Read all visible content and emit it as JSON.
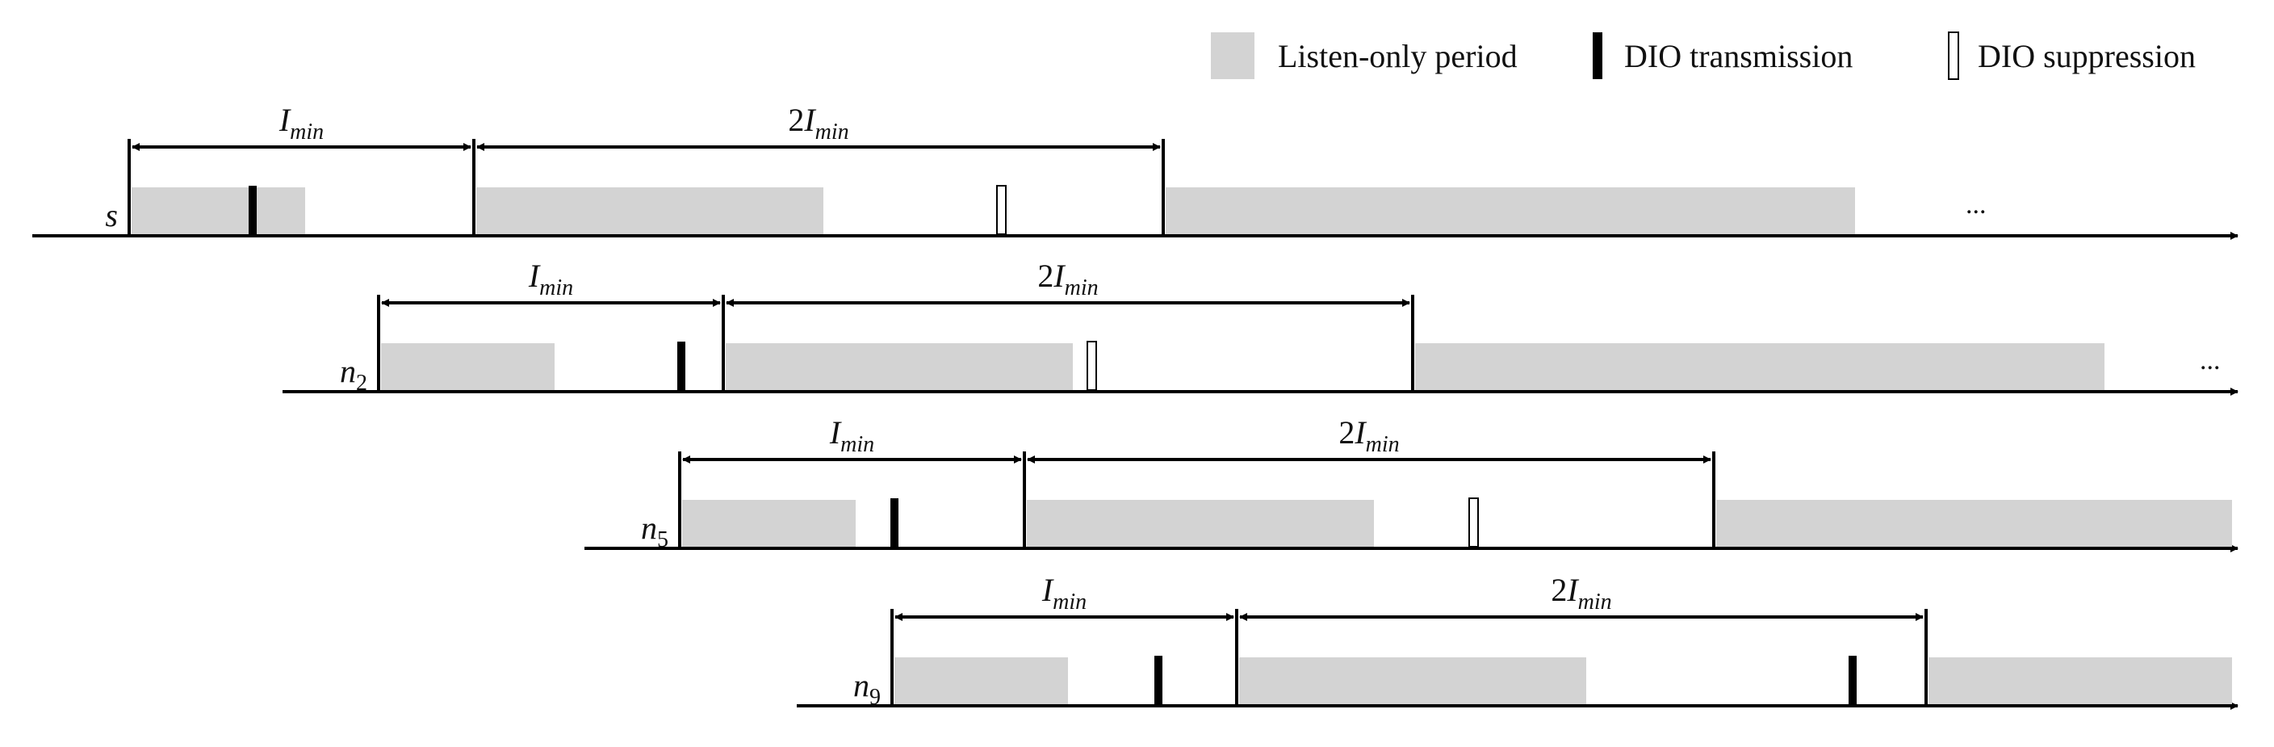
{
  "legend": {
    "listen_only": "Listen-only period",
    "dio_transmission": "DIO transmission",
    "dio_suppression": "DIO suppression"
  },
  "interval_labels": {
    "imin_main": "I",
    "imin_sub": "min",
    "double_prefix": "2"
  },
  "ellipsis": "...",
  "colors": {
    "listen_fill": "#d3d3d3",
    "line": "#000000",
    "suppression_fill": "#ffffff"
  },
  "rows": [
    {
      "name": "s",
      "label_main": "s",
      "label_sub": "",
      "has_ellipsis": true,
      "events": [
        {
          "interval": 1,
          "type": "transmission"
        },
        {
          "interval": 2,
          "type": "suppression"
        }
      ]
    },
    {
      "name": "n2",
      "label_main": "n",
      "label_sub": "2",
      "has_ellipsis": true,
      "events": [
        {
          "interval": 1,
          "type": "transmission"
        },
        {
          "interval": 2,
          "type": "suppression"
        }
      ]
    },
    {
      "name": "n5",
      "label_main": "n",
      "label_sub": "5",
      "has_ellipsis": false,
      "events": [
        {
          "interval": 1,
          "type": "transmission"
        },
        {
          "interval": 2,
          "type": "suppression"
        }
      ]
    },
    {
      "name": "n9",
      "label_main": "n",
      "label_sub": "9",
      "has_ellipsis": false,
      "events": [
        {
          "interval": 1,
          "type": "transmission"
        },
        {
          "interval": 2,
          "type": "transmission"
        }
      ]
    }
  ]
}
